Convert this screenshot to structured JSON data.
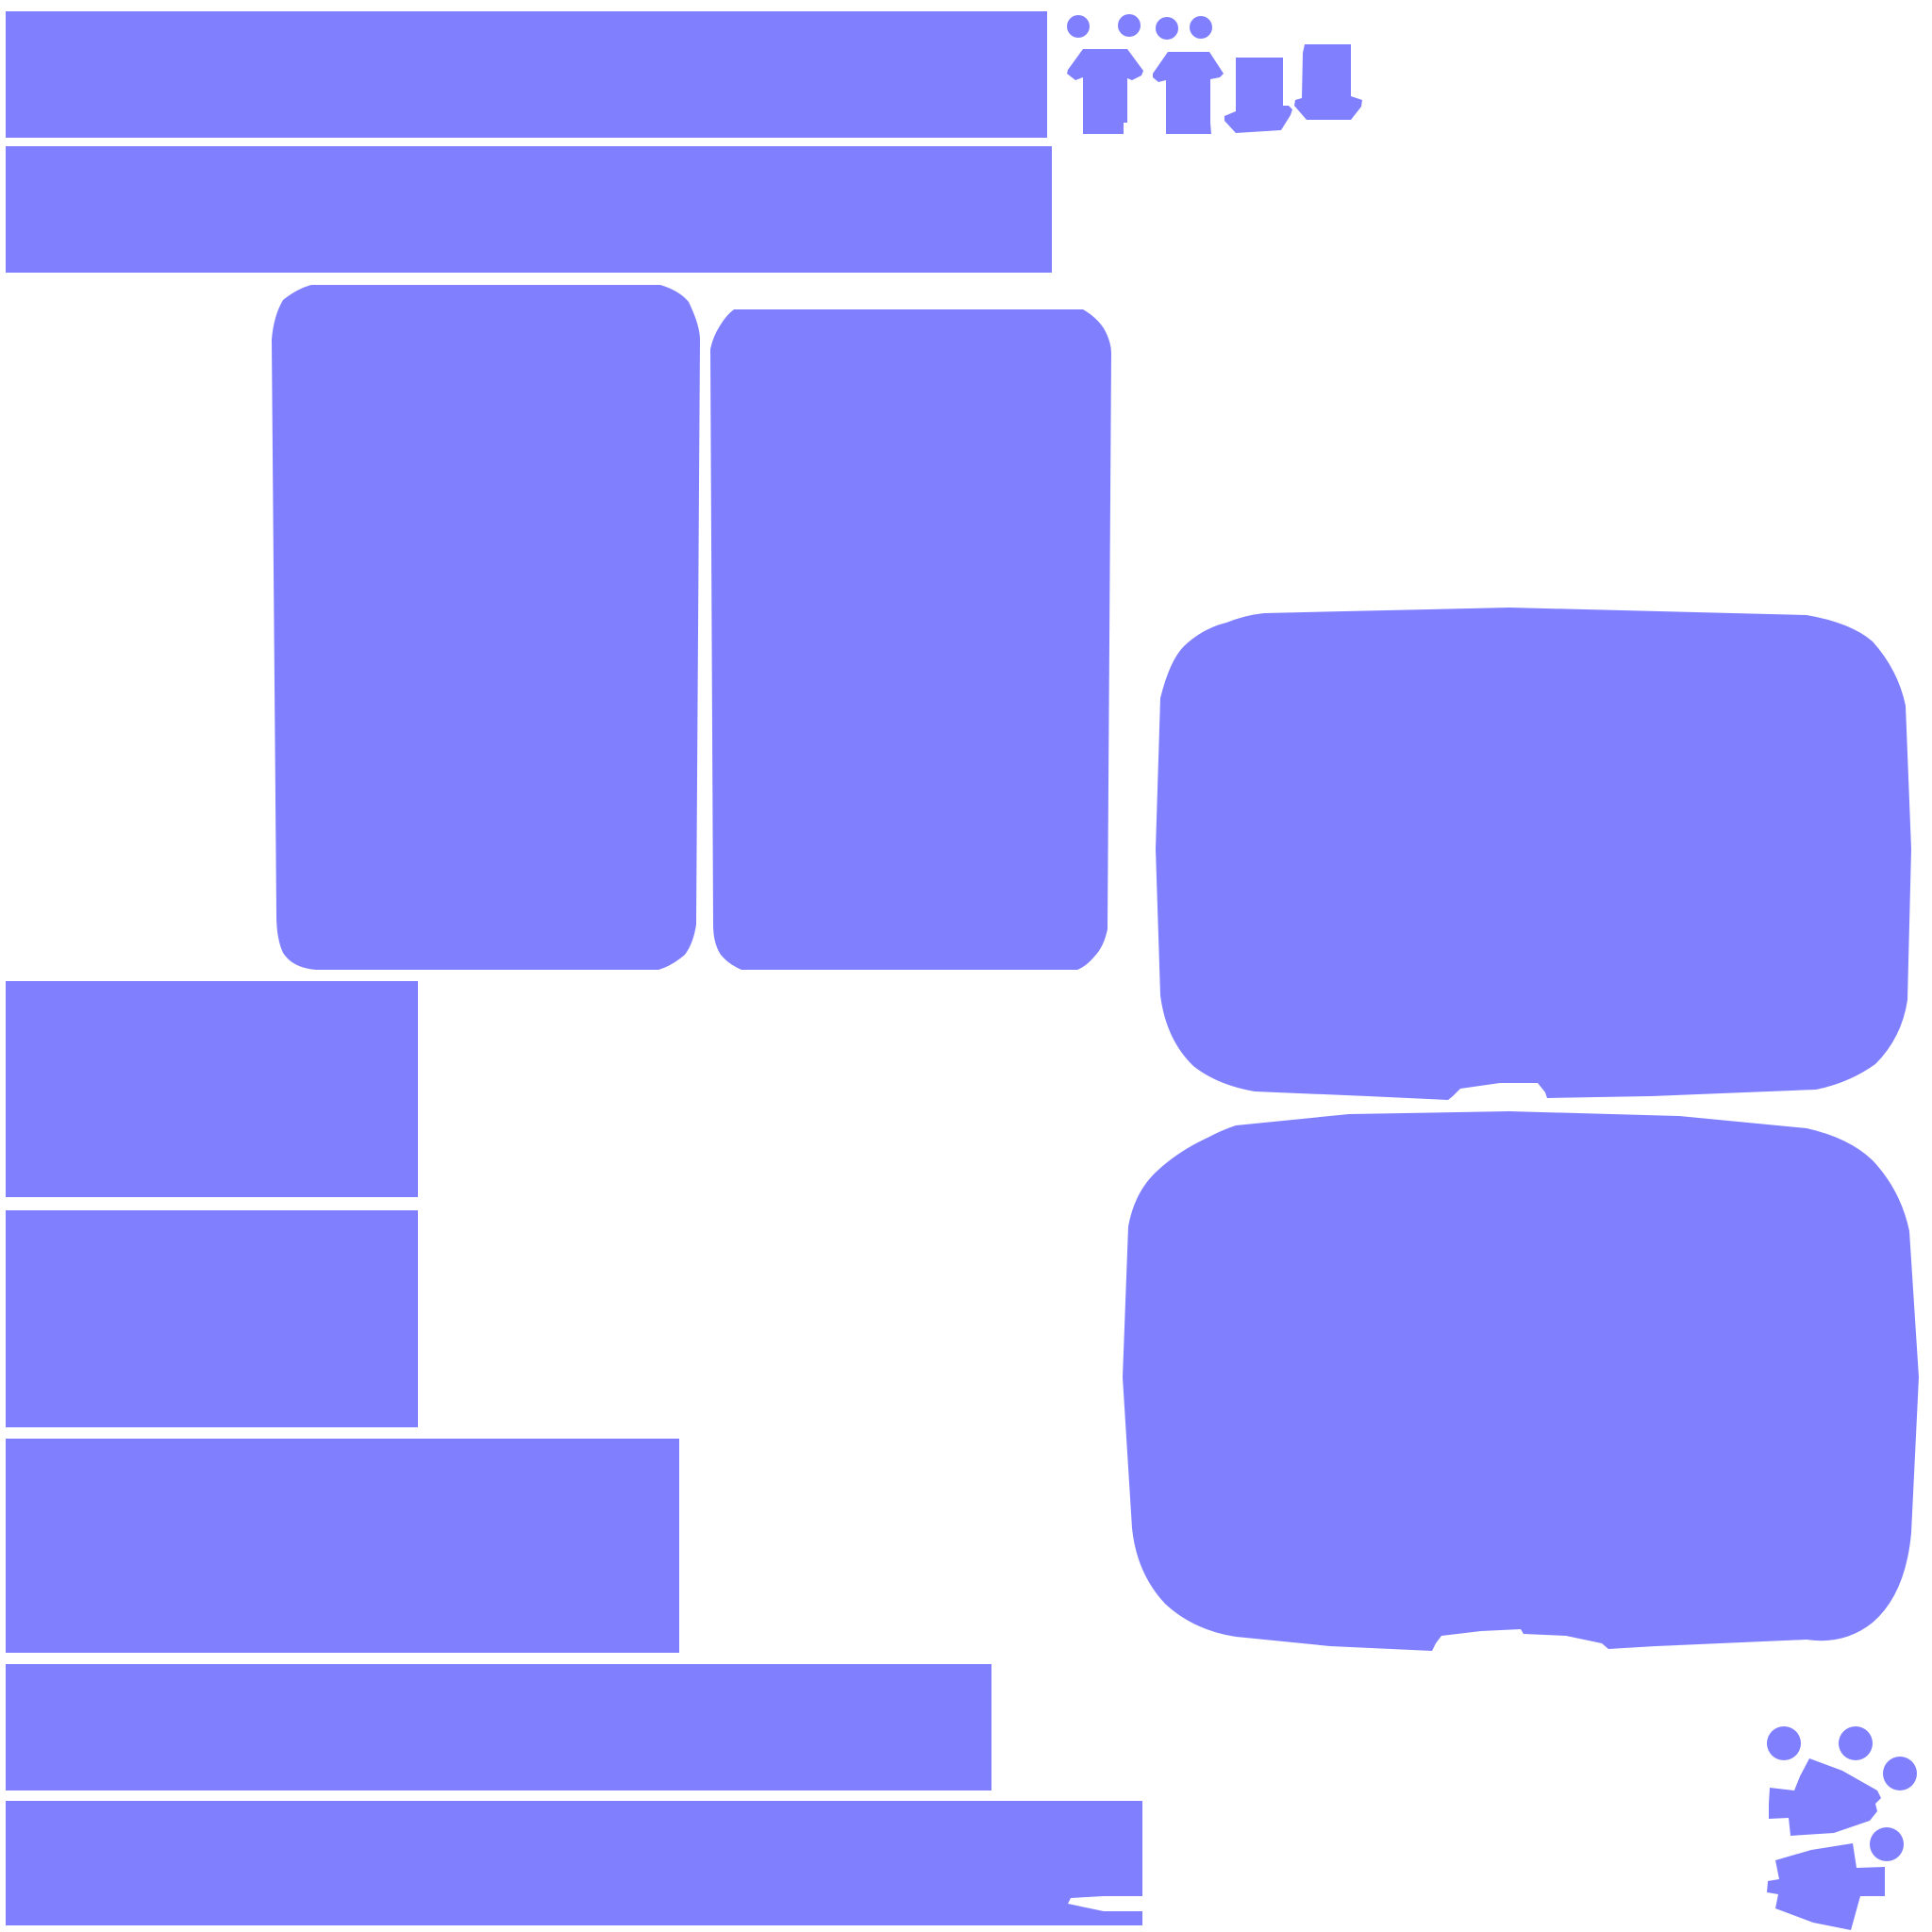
{
  "atlas": {
    "fill_color": "#8080ff",
    "background_color": "#ffffff",
    "regions": [
      {
        "name": "strip-top-1"
      },
      {
        "name": "strip-top-2"
      },
      {
        "name": "tall-panel-left"
      },
      {
        "name": "tall-panel-right"
      },
      {
        "name": "rounded-panel-upper"
      },
      {
        "name": "rounded-panel-lower"
      },
      {
        "name": "block-left-1"
      },
      {
        "name": "block-left-2"
      },
      {
        "name": "block-left-wide"
      },
      {
        "name": "strip-bottom-1"
      },
      {
        "name": "strip-bottom-2"
      }
    ],
    "figure_icons": [
      "figure-icon-1",
      "figure-icon-2",
      "figure-icon-3",
      "figure-icon-4"
    ],
    "paw_icons": [
      "paw-print-icon-1",
      "paw-print-icon-2"
    ]
  }
}
